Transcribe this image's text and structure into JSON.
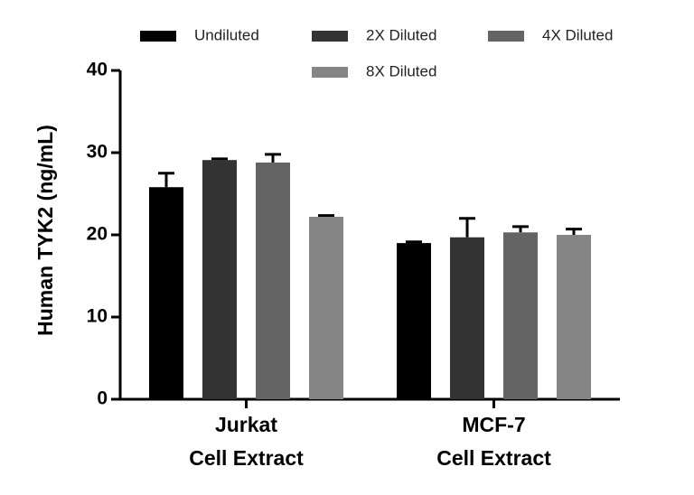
{
  "chart_data": {
    "type": "bar",
    "title": "",
    "xlabel": "",
    "ylabel": "Human TYK2 (ng/mL)",
    "ylim": [
      0,
      40
    ],
    "yticks": [
      0,
      10,
      20,
      30,
      40
    ],
    "grid": false,
    "legend_position": "top",
    "categories": [
      {
        "line1": "Jurkat",
        "line2": "Cell Extract"
      },
      {
        "line1": "MCF-7",
        "line2": "Cell Extract"
      }
    ],
    "series": [
      {
        "name": "Undiluted",
        "color": "#000000",
        "values": [
          25.8,
          19.0
        ],
        "errors": [
          1.7,
          0.15
        ]
      },
      {
        "name": "2X Diluted",
        "color": "#333333",
        "values": [
          29.1,
          19.7
        ],
        "errors": [
          0.15,
          2.3
        ]
      },
      {
        "name": "4X Diluted",
        "color": "#646464",
        "values": [
          28.8,
          20.3
        ],
        "errors": [
          1.0,
          0.7
        ]
      },
      {
        "name": "8X Diluted",
        "color": "#858585",
        "values": [
          22.2,
          20.0
        ],
        "errors": [
          0.15,
          0.7
        ]
      }
    ]
  }
}
